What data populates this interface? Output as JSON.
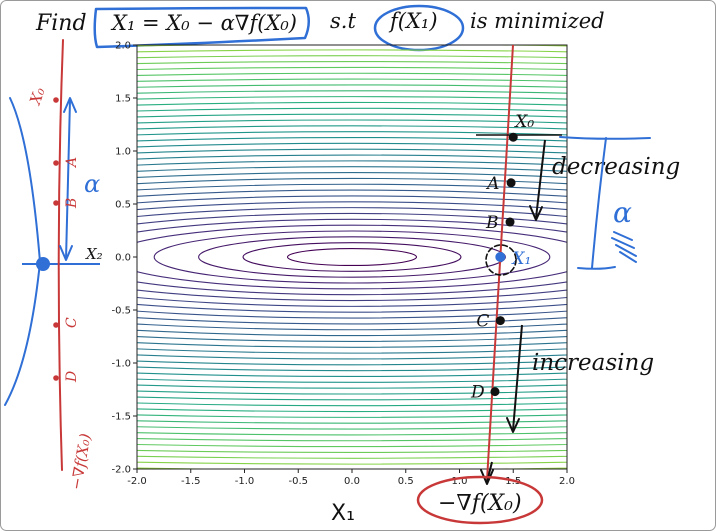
{
  "page": {
    "find_word": "Find",
    "equation": "X₁ = X₀ − α∇f(X₀)",
    "condition_st": "s.t",
    "condition_fx": "f(X₁)",
    "condition_rest": "is minimized"
  },
  "chart_data": {
    "type": "contour",
    "function_shape": "elongated elliptical bowl centered at (0, 0)",
    "xlabel": "X₁",
    "ylabel": "X₂",
    "xlim": [
      -2.0,
      2.0
    ],
    "ylim": [
      -2.0,
      2.0
    ],
    "xticks": [
      "-2.0",
      "-1.5",
      "-1.0",
      "-0.5",
      "0.0",
      "0.5",
      "1.0",
      "1.5",
      "2.0"
    ],
    "yticks": [
      "2.0",
      "1.5",
      "1.0",
      "0.5",
      "0.0",
      "-0.5",
      "-1.0",
      "-1.5",
      "-2.0"
    ],
    "contour_levels": 44,
    "x_scale": 7.5,
    "colormap": "viridis",
    "grid": false,
    "path": {
      "color": "#c83838",
      "points": [
        {
          "label": "X₀",
          "x": 1.5,
          "y": 1.13
        },
        {
          "label": "A",
          "x": 1.48,
          "y": 0.7
        },
        {
          "label": "B",
          "x": 1.47,
          "y": 0.33
        },
        {
          "label": "X₁",
          "x": 1.38,
          "y": 0.0
        },
        {
          "label": "C",
          "x": 1.38,
          "y": -0.6
        },
        {
          "label": "D",
          "x": 1.33,
          "y": -1.27
        }
      ],
      "end_label": "−∇f(X₀)"
    },
    "annotations": {
      "decreasing": "decreasing",
      "increasing": "increasing",
      "alpha": "α"
    }
  },
  "side_line": {
    "top_label": "X₀",
    "bottom_label": "−∇f(X₀)",
    "marks": [
      "A",
      "B",
      "C",
      "D"
    ],
    "alpha_label": "α",
    "axis_label": "X₂"
  },
  "colors": {
    "red_ink": "#c83838",
    "blue_ink": "#2f6fd6",
    "black_ink": "#111111"
  }
}
